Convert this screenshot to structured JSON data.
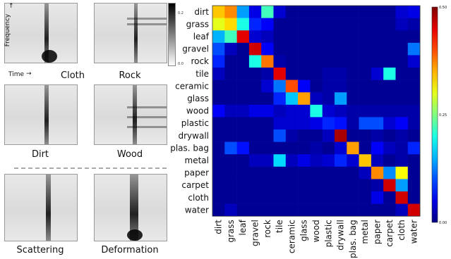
{
  "spectrograms": {
    "axis_y_label": "Frequency",
    "axis_x_label": "Time",
    "colorbar_ticks": [
      "0.2",
      "0.0"
    ],
    "labels": [
      "Cloth",
      "Rock",
      "Dirt",
      "Wood",
      "Scattering",
      "Deformation"
    ]
  },
  "chart_data": {
    "type": "heatmap",
    "categories": [
      "dirt",
      "grass",
      "leaf",
      "gravel",
      "rock",
      "tile",
      "ceramic",
      "glass",
      "wood",
      "plastic",
      "drywall",
      "plas. bag",
      "metal",
      "paper",
      "carpet",
      "cloth",
      "water"
    ],
    "colorbar": {
      "range": [
        0,
        0.5
      ],
      "ticks": [
        "0.50",
        "0.25",
        "0.00"
      ]
    },
    "values": [
      [
        0.34,
        0.37,
        0.14,
        0.05,
        0.22,
        0.04,
        0.01,
        0.01,
        0.01,
        0.01,
        0.01,
        0.01,
        0.01,
        0.01,
        0.01,
        0.04,
        0.05
      ],
      [
        0.3,
        0.33,
        0.2,
        0.08,
        0.06,
        0.01,
        0.01,
        0.01,
        0.01,
        0.01,
        0.01,
        0.01,
        0.01,
        0.01,
        0.01,
        0.03,
        0.02
      ],
      [
        0.15,
        0.22,
        0.45,
        0.04,
        0.03,
        0.01,
        0.01,
        0.01,
        0.01,
        0.01,
        0.01,
        0.01,
        0.01,
        0.01,
        0.01,
        0.01,
        0.01
      ],
      [
        0.1,
        0.03,
        0.01,
        0.46,
        0.06,
        0.01,
        0.01,
        0.01,
        0.01,
        0.01,
        0.01,
        0.01,
        0.01,
        0.01,
        0.01,
        0.01,
        0.12
      ],
      [
        0.08,
        0.01,
        0.01,
        0.2,
        0.38,
        0.02,
        0.01,
        0.01,
        0.01,
        0.01,
        0.01,
        0.01,
        0.01,
        0.01,
        0.01,
        0.01,
        0.04
      ],
      [
        0.03,
        0.01,
        0.01,
        0.01,
        0.02,
        0.45,
        0.01,
        0.01,
        0.01,
        0.02,
        0.02,
        0.01,
        0.01,
        0.04,
        0.2,
        0.01,
        0.01
      ],
      [
        0.01,
        0.01,
        0.01,
        0.01,
        0.04,
        0.12,
        0.4,
        0.06,
        0.01,
        0.02,
        0.02,
        0.01,
        0.01,
        0.01,
        0.01,
        0.01,
        0.01
      ],
      [
        0.01,
        0.01,
        0.01,
        0.01,
        0.01,
        0.08,
        0.16,
        0.36,
        0.03,
        0.02,
        0.14,
        0.01,
        0.01,
        0.01,
        0.01,
        0.01,
        0.01
      ],
      [
        0.06,
        0.03,
        0.03,
        0.05,
        0.05,
        0.03,
        0.04,
        0.04,
        0.2,
        0.04,
        0.03,
        0.02,
        0.02,
        0.02,
        0.02,
        0.02,
        0.02
      ],
      [
        0.01,
        0.01,
        0.01,
        0.01,
        0.01,
        0.04,
        0.04,
        0.04,
        0.05,
        0.08,
        0.07,
        0.02,
        0.1,
        0.1,
        0.04,
        0.06,
        0.02
      ],
      [
        0.01,
        0.01,
        0.01,
        0.01,
        0.01,
        0.1,
        0.02,
        0.01,
        0.01,
        0.03,
        0.48,
        0.01,
        0.01,
        0.02,
        0.01,
        0.02,
        0.01
      ],
      [
        0.01,
        0.1,
        0.07,
        0.01,
        0.01,
        0.01,
        0.01,
        0.01,
        0.02,
        0.01,
        0.04,
        0.36,
        0.01,
        0.06,
        0.03,
        0.02,
        0.08
      ],
      [
        0.01,
        0.01,
        0.01,
        0.03,
        0.03,
        0.17,
        0.03,
        0.05,
        0.03,
        0.04,
        0.08,
        0.04,
        0.34,
        0.03,
        0.01,
        0.02,
        0.01
      ],
      [
        0.01,
        0.01,
        0.01,
        0.01,
        0.01,
        0.01,
        0.01,
        0.01,
        0.01,
        0.01,
        0.01,
        0.01,
        0.03,
        0.37,
        0.13,
        0.31,
        0.01
      ],
      [
        0.01,
        0.01,
        0.01,
        0.01,
        0.01,
        0.01,
        0.01,
        0.01,
        0.01,
        0.01,
        0.01,
        0.01,
        0.01,
        0.02,
        0.46,
        0.14,
        0.01
      ],
      [
        0.01,
        0.01,
        0.01,
        0.01,
        0.01,
        0.01,
        0.01,
        0.01,
        0.01,
        0.01,
        0.01,
        0.01,
        0.01,
        0.05,
        0.01,
        0.46,
        0.01
      ],
      [
        0.01,
        0.03,
        0.01,
        0.01,
        0.01,
        0.01,
        0.01,
        0.01,
        0.01,
        0.01,
        0.01,
        0.01,
        0.01,
        0.01,
        0.01,
        0.03,
        0.46
      ]
    ]
  }
}
